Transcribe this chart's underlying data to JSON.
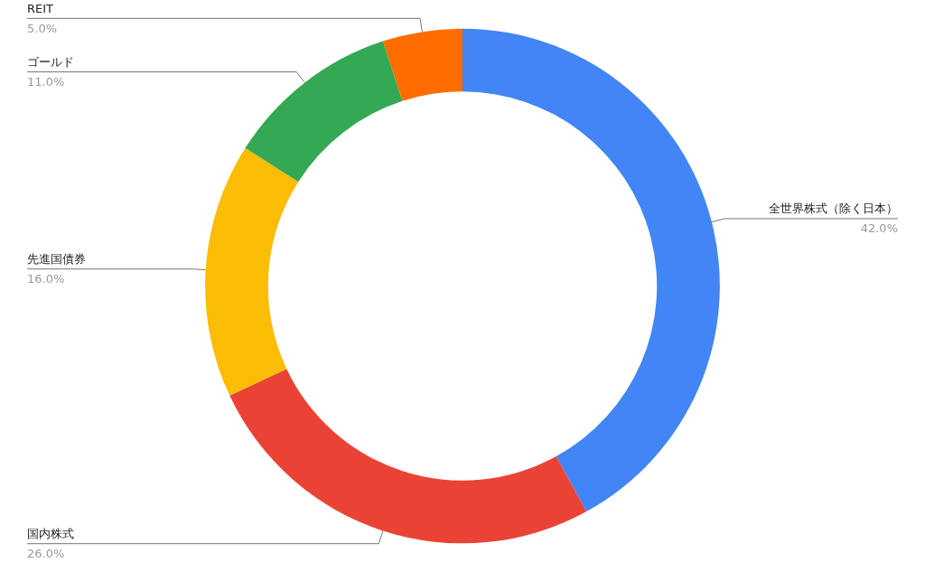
{
  "chart_data": {
    "type": "donut",
    "categories": [
      "全世界株式（除く日本）",
      "国内株式",
      "先進国債券",
      "ゴールド",
      "REIT"
    ],
    "values": [
      42,
      26,
      16,
      11,
      5
    ],
    "colors": [
      "#4285f4",
      "#ea4335",
      "#fbbc04",
      "#34a853",
      "#ff6d01"
    ],
    "value_labels": [
      "42.0%",
      "26.0%",
      "16.0%",
      "11.0%",
      "5.0%"
    ]
  }
}
